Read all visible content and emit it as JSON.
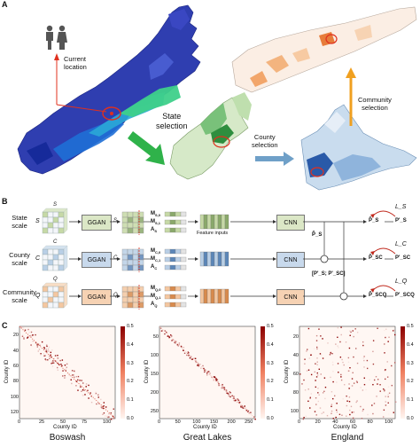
{
  "panel_a": {
    "letter": "A",
    "current_location": "Current\nlocation",
    "state_selection": "State\nselection",
    "county_selection": "County\nselection",
    "community_selection": "Community\nselection"
  },
  "panel_b": {
    "letter": "B",
    "rows": [
      {
        "scale": "State\nscale",
        "sym": "S",
        "matrix_sym": "S",
        "color": "#c6d9a6",
        "color_dark": "#8aa96a",
        "ggan_fill": "#dbe7c6",
        "m1": "M_{S,0}",
        "m2": "M_{S,1}",
        "a": "A_S",
        "cnn_fill": "#dbe7c6",
        "loss": "L_S",
        "p_hat": "P̂_S",
        "p": "P'_S"
      },
      {
        "scale": "County\nscale",
        "sym": "C",
        "matrix_sym": "C",
        "color": "#b9cfe6",
        "color_dark": "#5b86b8",
        "ggan_fill": "#c8d9ec",
        "m1": "M_{C,0}",
        "m2": "M_{C,1}",
        "a": "A_C",
        "cnn_fill": "#c8d9ec",
        "loss": "L_C",
        "p_hat": "P̂_SC",
        "p": "P'_SC"
      },
      {
        "scale": "Community\nscale",
        "sym": "Q",
        "matrix_sym": "Q",
        "color": "#f4c7a0",
        "color_dark": "#d88a4c",
        "ggan_fill": "#f6d2b3",
        "m1": "M_{Q,0}",
        "m2": "M_{Q,1}",
        "a": "A_Q",
        "cnn_fill": "#f6d2b3",
        "loss": "L_Q",
        "p_hat": "P̂_SCQ",
        "p": "P'_SCQ"
      }
    ],
    "ggan_label": "GGAN",
    "cnn_label": "CNN",
    "feature_inputs": "Feature inputs",
    "p_tilde_s": "P̃_S",
    "concat": "[P'_S; P'_SC]"
  },
  "panel_c": {
    "letter": "C",
    "colors": {
      "low": "#fff5f0",
      "high": "#8b0000"
    },
    "heatmaps": [
      {
        "title": "Boswash",
        "xlabel": "County ID",
        "ylabel": "County ID",
        "xticks": [
          "0",
          "25",
          "50",
          "75",
          "100"
        ],
        "yticks": [
          "20",
          "40",
          "60",
          "80",
          "100",
          "120"
        ],
        "cbar_ticks": [
          "0.5",
          "0.4",
          "0.3",
          "0.2",
          "0.1",
          "0.0"
        ],
        "vmin": 0,
        "vmax": 0.5
      },
      {
        "title": "Great Lakes",
        "xlabel": "County ID",
        "ylabel": "County ID",
        "xticks": [
          "0",
          "50",
          "100",
          "150",
          "200",
          "250"
        ],
        "yticks": [
          "50",
          "100",
          "150",
          "200",
          "250"
        ],
        "cbar_ticks": [
          "0.5",
          "0.4",
          "0.3",
          "0.2",
          "0.1",
          "0.0"
        ],
        "vmin": 0,
        "vmax": 0.5
      },
      {
        "title": "England",
        "xlabel": "County ID",
        "ylabel": "County ID",
        "xticks": [
          "0",
          "20",
          "40",
          "60",
          "80",
          "100"
        ],
        "yticks": [
          "20",
          "40",
          "60",
          "80",
          "100"
        ],
        "cbar_ticks": [
          "0.5",
          "0.4",
          "0.3",
          "0.2",
          "0.1",
          "0.0"
        ],
        "vmin": 0,
        "vmax": 0.5
      }
    ]
  }
}
